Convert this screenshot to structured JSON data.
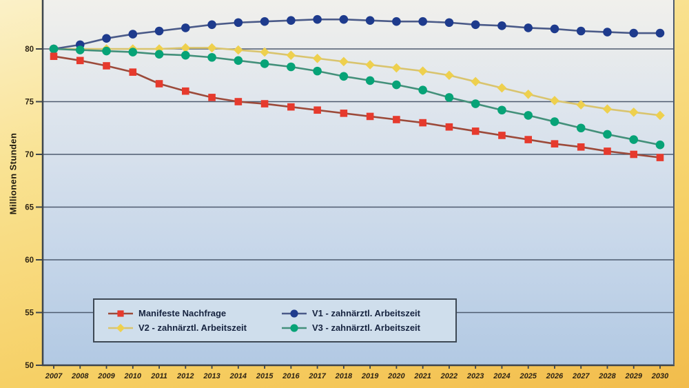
{
  "chart_data": {
    "type": "line",
    "title": "",
    "xlabel": "",
    "ylabel": "Millionen Stunden",
    "x": [
      2007,
      2008,
      2009,
      2010,
      2011,
      2012,
      2013,
      2014,
      2015,
      2016,
      2017,
      2018,
      2019,
      2020,
      2021,
      2022,
      2023,
      2024,
      2025,
      2026,
      2027,
      2028,
      2029,
      2030
    ],
    "yticks": [
      80,
      75,
      70,
      65,
      60,
      55,
      50
    ],
    "ylim": [
      50,
      84.5
    ],
    "grid": "horizontal",
    "legend_position": "bottom-left-inside",
    "series": [
      {
        "name": "Manifeste Nachfrage",
        "marker": "square",
        "color": "#e63a2d",
        "line_color": "#9c4a3a",
        "values": [
          79.3,
          78.9,
          78.4,
          77.8,
          76.7,
          76.0,
          75.4,
          75.0,
          74.8,
          74.5,
          74.2,
          73.9,
          73.6,
          73.3,
          73.0,
          72.6,
          72.2,
          71.8,
          71.4,
          71.0,
          70.7,
          70.3,
          70.0,
          69.7
        ]
      },
      {
        "name": "V1 - zahnärztl. Arbeitszeit",
        "marker": "circle",
        "color": "#1e3b8d",
        "line_color": "#4a5a88",
        "values": [
          80.0,
          80.4,
          81.0,
          81.4,
          81.7,
          82.0,
          82.3,
          82.5,
          82.6,
          82.7,
          82.8,
          82.8,
          82.7,
          82.6,
          82.6,
          82.5,
          82.3,
          82.2,
          82.0,
          81.9,
          81.7,
          81.6,
          81.5,
          81.5
        ]
      },
      {
        "name": "V2 - zahnärztl. Arbeitszeit",
        "marker": "diamond",
        "color": "#eed04e",
        "line_color": "#d9c46e",
        "values": [
          80.0,
          80.0,
          80.0,
          80.0,
          80.0,
          80.1,
          80.1,
          79.9,
          79.7,
          79.4,
          79.1,
          78.8,
          78.5,
          78.2,
          77.9,
          77.5,
          76.9,
          76.3,
          75.7,
          75.1,
          74.7,
          74.3,
          74.0,
          73.7
        ]
      },
      {
        "name": "V3 - zahnärztl. Arbeitszeit",
        "marker": "circle",
        "color": "#07a377",
        "line_color": "#43907a",
        "values": [
          80.0,
          79.9,
          79.8,
          79.7,
          79.5,
          79.4,
          79.2,
          78.9,
          78.6,
          78.3,
          77.9,
          77.4,
          77.0,
          76.6,
          76.1,
          75.4,
          74.8,
          74.2,
          73.7,
          73.1,
          72.5,
          71.9,
          71.4,
          70.9
        ]
      }
    ],
    "colors": {
      "grid": "#4d5a6e",
      "axis": "#3c444c",
      "plot_bg_top": "#f1f0ec",
      "plot_bg_bottom": "#b2c9e3",
      "outer_bg": "#f6cf63",
      "legend_bg": "#cfdeec"
    }
  }
}
